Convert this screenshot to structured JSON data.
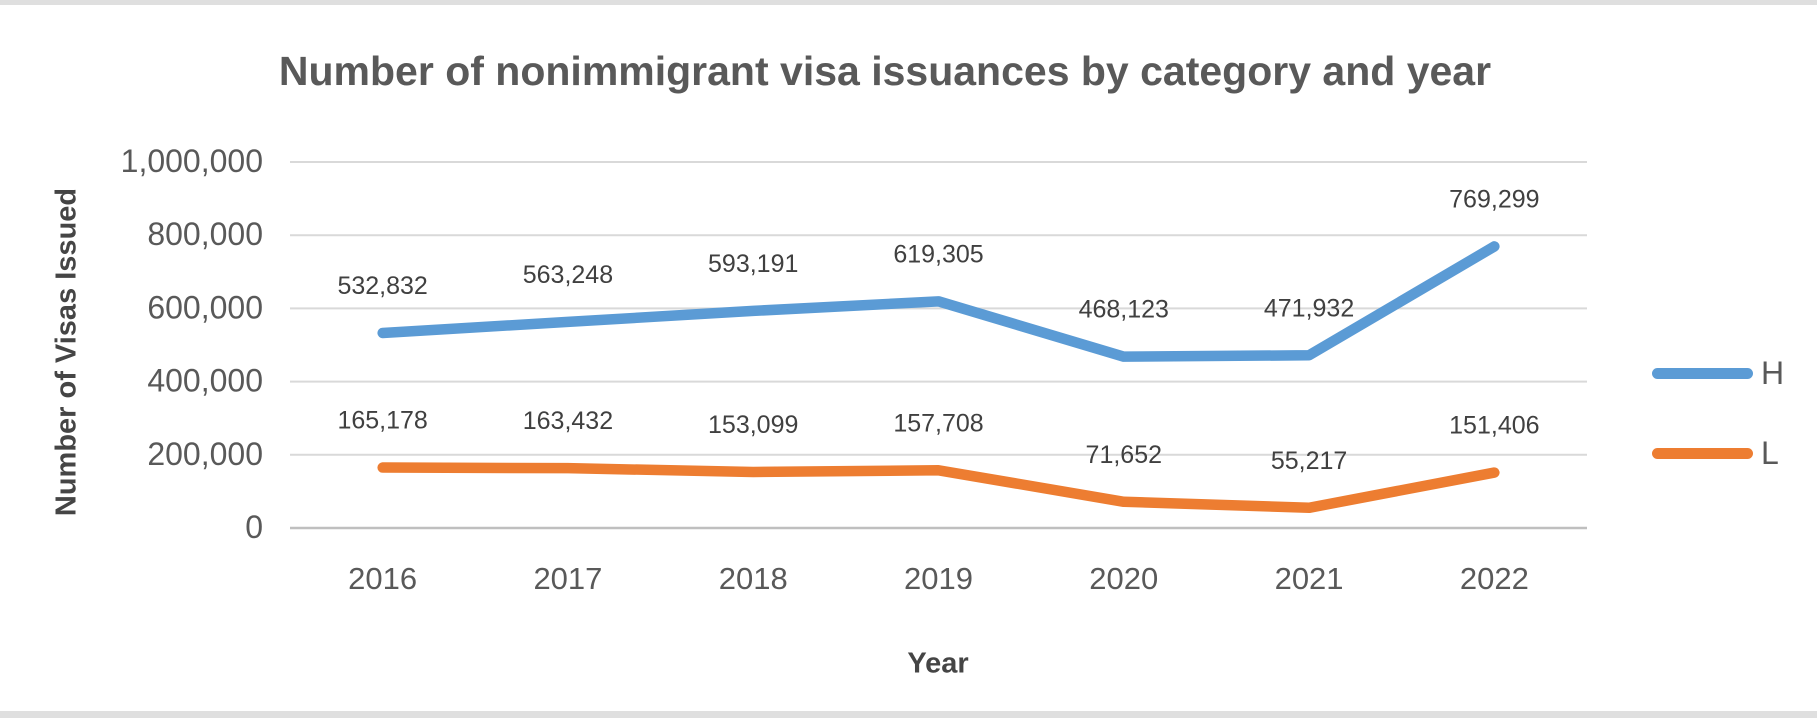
{
  "window": {
    "background": "#ffffff",
    "edge_strip_color": "#dfdfdf"
  },
  "chart_data": {
    "type": "line",
    "title": "Number of nonimmigrant visa issuances by category and year",
    "xlabel": "Year",
    "ylabel": "Number of Visas Issued",
    "categories": [
      "2016",
      "2017",
      "2018",
      "2019",
      "2020",
      "2021",
      "2022"
    ],
    "series": [
      {
        "name": "H",
        "color": "#5B9BD5",
        "values": [
          532832,
          563248,
          593191,
          619305,
          468123,
          471932,
          769299
        ],
        "data_labels": [
          "532,832",
          "563,248",
          "593,191",
          "619,305",
          "468,123",
          "471,932",
          "769,299"
        ]
      },
      {
        "name": "L",
        "color": "#ED7D31",
        "values": [
          165178,
          163432,
          153099,
          157708,
          71652,
          55217,
          151406
        ],
        "data_labels": [
          "165,178",
          "163,432",
          "153,099",
          "157,708",
          "71,652",
          "55,217",
          "151,406"
        ]
      }
    ],
    "ylim": [
      0,
      1000000
    ],
    "y_ticks": [
      0,
      200000,
      400000,
      600000,
      800000,
      1000000
    ],
    "y_tick_labels": [
      "0",
      "200,000",
      "400,000",
      "600,000",
      "800,000",
      "1,000,000"
    ],
    "grid": true,
    "data_labels_shown": true,
    "legend_position": "right",
    "line_width": 10.5,
    "gridline_color": "#D9D9D9",
    "axis_line_color": "#BFBFBF",
    "tick_text_color": "#595959",
    "data_label_color": "#404040"
  }
}
